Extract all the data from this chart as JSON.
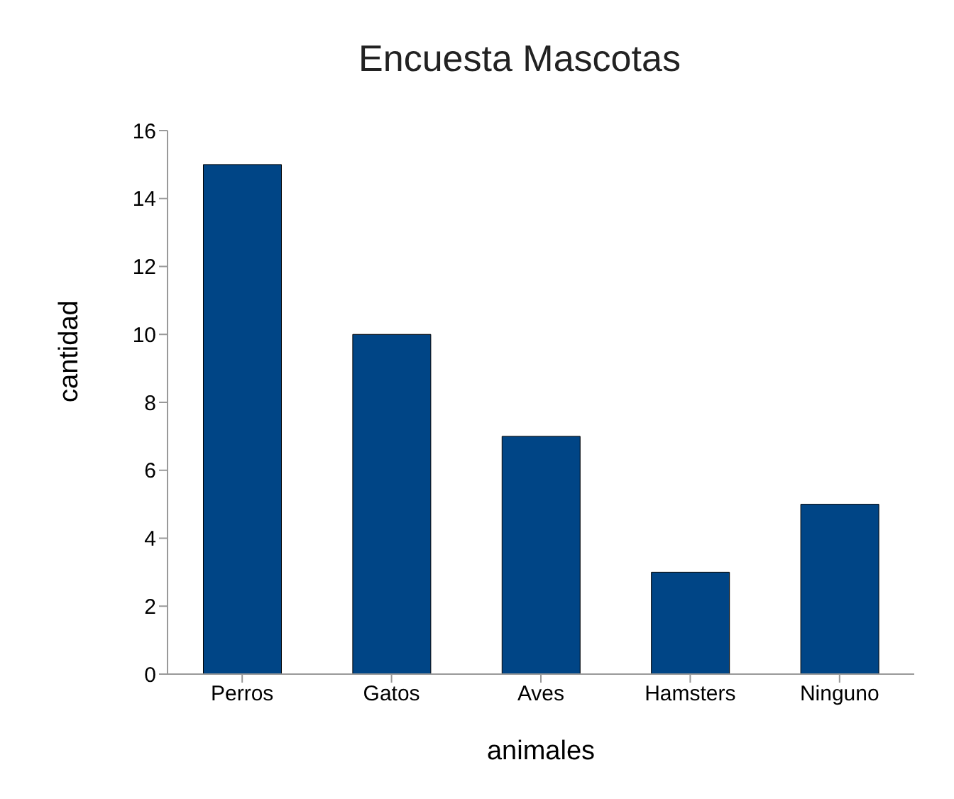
{
  "chart_data": {
    "type": "bar",
    "title": "Encuesta Mascotas",
    "xlabel": "animales",
    "ylabel": "cantidad",
    "categories": [
      "Perros",
      "Gatos",
      "Aves",
      "Hamsters",
      "Ninguno"
    ],
    "values": [
      15,
      10,
      7,
      3,
      5
    ],
    "color": "#004586",
    "ylim": [
      0,
      16
    ],
    "yticks": [
      0,
      2,
      4,
      6,
      8,
      10,
      12,
      14,
      16
    ],
    "grid": false,
    "legend": false
  }
}
